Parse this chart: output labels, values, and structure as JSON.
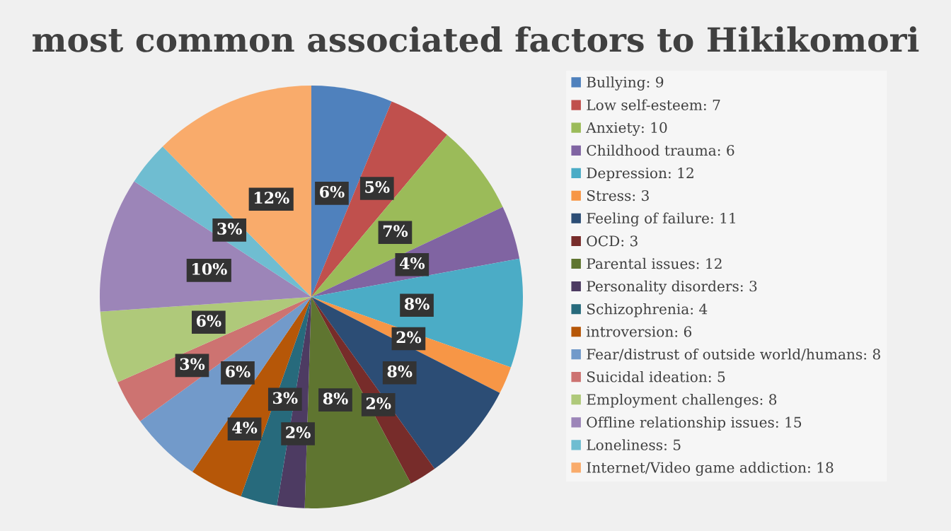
{
  "chart_data": {
    "type": "pie",
    "title": "most common associated factors to Hikikomori",
    "categories": [
      "Bullying: 9",
      "Low self-esteem: 7",
      "Anxiety: 10",
      "Childhood trauma: 6",
      "Depression: 12",
      "Stress: 3",
      "Feeling of failure: 11",
      "OCD: 3",
      "Parental issues: 12",
      "Personality disorders: 3",
      "Schizophrenia: 4",
      "introversion: 6",
      "Fear/distrust of outside world/humans: 8",
      "Suicidal ideation: 5",
      "Employment challenges: 8",
      "Offline relationship issues: 15",
      "Loneliness: 5",
      "Internet/Video game addiction: 18"
    ],
    "values": [
      6.2,
      4.9,
      6.9,
      4.1,
      8.3,
      2.1,
      7.6,
      2.1,
      8.3,
      2.1,
      2.8,
      4.1,
      5.5,
      3.4,
      5.5,
      10.3,
      3.4,
      12.4
    ],
    "value_labels": [
      "6%",
      "5%",
      "7%",
      "4%",
      "8%",
      "2%",
      "8%",
      "2%",
      "8%",
      "2%",
      "3%",
      "4%",
      "6%",
      "3%",
      "6%",
      "10%",
      "3%",
      "12%"
    ],
    "colors": [
      "#4f81bd",
      "#c0504d",
      "#9bbb59",
      "#8064a2",
      "#4bacc6",
      "#f79646",
      "#2c4d75",
      "#772c2a",
      "#5f7530",
      "#4d3b62",
      "#276a7c",
      "#b65708",
      "#729aca",
      "#cd7371",
      "#afc97a",
      "#9c85b8",
      "#6fbdd1",
      "#f9ab6b"
    ],
    "legend": "right"
  }
}
